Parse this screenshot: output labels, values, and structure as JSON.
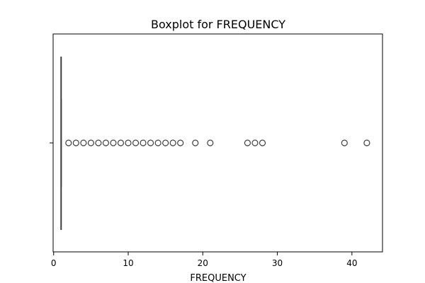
{
  "chart_data": {
    "type": "box",
    "title": "Boxplot for FREQUENCY",
    "xlabel": "FREQUENCY",
    "ylabel": "",
    "xlim": [
      -0.07,
      44.1
    ],
    "xticks": [
      0,
      10,
      20,
      30,
      40
    ],
    "orientation": "horizontal",
    "grid": false,
    "box": {
      "min": 1,
      "q1": 1,
      "median": 1,
      "q3": 1,
      "max": 1
    },
    "outliers": [
      2,
      3,
      4,
      5,
      6,
      7,
      8,
      9,
      10,
      11,
      12,
      13,
      14,
      15,
      16,
      17,
      19,
      21,
      26,
      27,
      28,
      39,
      42
    ]
  }
}
